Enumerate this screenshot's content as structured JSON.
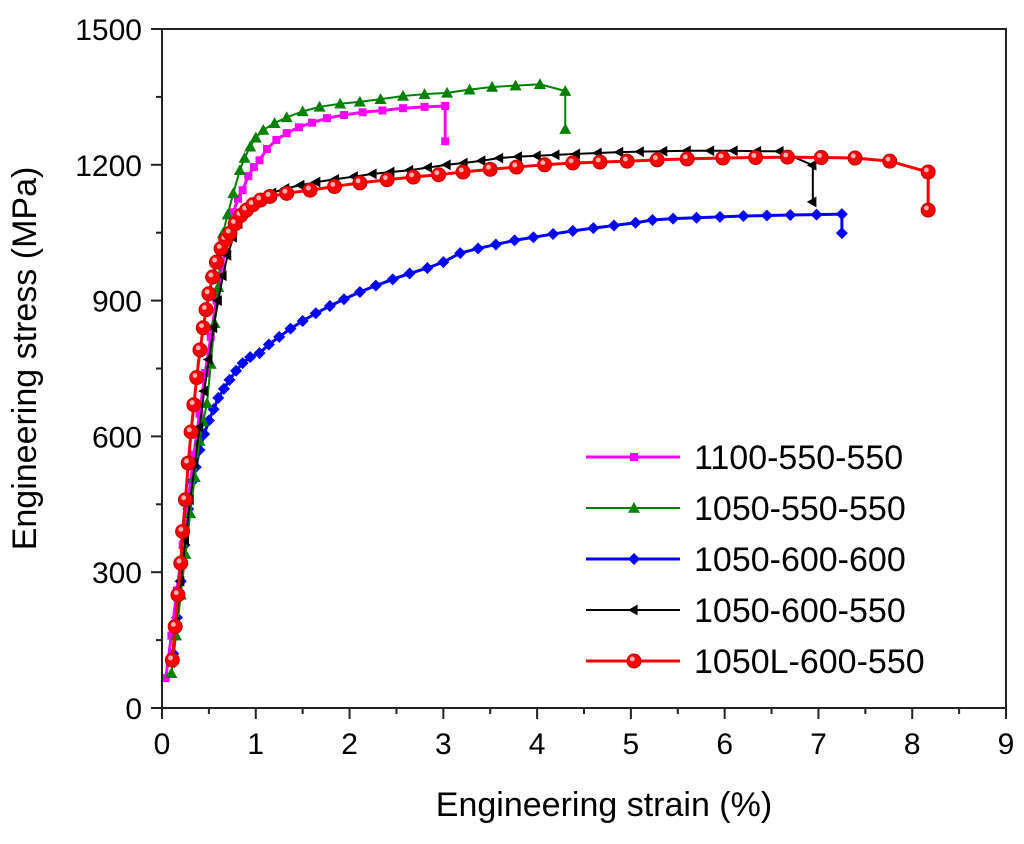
{
  "chart_data": {
    "type": "line",
    "title": "",
    "xlabel": "Engineering strain (%)",
    "ylabel": "Engineering stress (MPa)",
    "xlim": [
      0,
      9
    ],
    "ylim": [
      0,
      1500
    ],
    "xticks": [
      0,
      1,
      2,
      3,
      4,
      5,
      6,
      7,
      8,
      9
    ],
    "yticks": [
      0,
      300,
      600,
      900,
      1200,
      1500
    ],
    "xtick_labels": [
      "0",
      "1",
      "2",
      "3",
      "4",
      "5",
      "6",
      "7",
      "8",
      "9"
    ],
    "ytick_labels": [
      "0",
      "300",
      "600",
      "900",
      "1200",
      "1500"
    ],
    "grid": false,
    "legend_position": "bottom-right",
    "series": [
      {
        "name": "1100-550-550",
        "color": "#ff00ff",
        "marker": "square",
        "x": [
          0.04,
          0.1,
          0.16,
          0.22,
          0.28,
          0.34,
          0.4,
          0.46,
          0.52,
          0.58,
          0.64,
          0.7,
          0.76,
          0.81,
          0.86,
          0.92,
          0.98,
          1.04,
          1.12,
          1.22,
          1.33,
          1.46,
          1.6,
          1.76,
          1.94,
          2.14,
          2.35,
          2.57,
          2.8,
          3.02,
          3.02
        ],
        "y": [
          66,
          160,
          260,
          360,
          460,
          560,
          650,
          740,
          820,
          900,
          975,
          1040,
          1095,
          1125,
          1144,
          1175,
          1195,
          1210,
          1235,
          1255,
          1270,
          1283,
          1293,
          1303,
          1310,
          1316,
          1320,
          1325,
          1328,
          1330,
          1252
        ]
      },
      {
        "name": "1050-550-550",
        "color": "#008000",
        "marker": "triangle-up",
        "x": [
          0.1,
          0.15,
          0.2,
          0.25,
          0.3,
          0.35,
          0.4,
          0.44,
          0.48,
          0.52,
          0.56,
          0.6,
          0.65,
          0.7,
          0.76,
          0.83,
          0.88,
          0.94,
          1.0,
          1.08,
          1.2,
          1.33,
          1.5,
          1.68,
          1.9,
          2.11,
          2.33,
          2.57,
          2.8,
          3.04,
          3.28,
          3.52,
          3.77,
          4.03,
          4.3,
          4.3
        ],
        "y": [
          77,
          160,
          250,
          340,
          430,
          510,
          590,
          633,
          673,
          760,
          850,
          930,
          1049,
          1090,
          1137,
          1188,
          1215,
          1240,
          1260,
          1277,
          1292,
          1305,
          1318,
          1328,
          1335,
          1339,
          1345,
          1352,
          1356,
          1359,
          1366,
          1372,
          1375,
          1378,
          1363,
          1279
        ]
      },
      {
        "name": "1050-600-600",
        "color": "#0000ff",
        "marker": "diamond",
        "x": [
          0.12,
          0.16,
          0.2,
          0.24,
          0.28,
          0.32,
          0.36,
          0.4,
          0.45,
          0.5,
          0.55,
          0.6,
          0.66,
          0.72,
          0.79,
          0.86,
          0.94,
          1.04,
          1.14,
          1.25,
          1.37,
          1.5,
          1.64,
          1.79,
          1.94,
          2.11,
          2.28,
          2.46,
          2.64,
          2.83,
          3.0,
          3.18,
          3.37,
          3.56,
          3.76,
          3.96,
          4.17,
          4.38,
          4.6,
          4.82,
          5.05,
          5.23,
          5.45,
          5.7,
          5.95,
          6.2,
          6.45,
          6.7,
          6.98,
          7.25,
          7.25
        ],
        "y": [
          120,
          200,
          280,
          360,
          440,
          500,
          532,
          570,
          605,
          635,
          660,
          685,
          705,
          725,
          745,
          762,
          775,
          784,
          803,
          820,
          838,
          855,
          872,
          888,
          903,
          919,
          933,
          947,
          960,
          972,
          985,
          1005,
          1015,
          1024,
          1033,
          1040,
          1047,
          1054,
          1060,
          1066,
          1072,
          1078,
          1081,
          1083,
          1085,
          1087,
          1088,
          1089,
          1090,
          1091,
          1049
        ]
      },
      {
        "name": "1050-600-550",
        "color": "#000000",
        "marker": "triangle-left",
        "x": [
          0.1,
          0.15,
          0.2,
          0.25,
          0.3,
          0.35,
          0.4,
          0.45,
          0.5,
          0.55,
          0.6,
          0.65,
          0.7,
          0.76,
          0.82,
          0.89,
          0.97,
          1.06,
          1.18,
          1.32,
          1.48,
          1.65,
          1.85,
          2.05,
          2.25,
          2.44,
          2.64,
          2.84,
          3.04,
          3.22,
          3.41,
          3.6,
          3.8,
          4.0,
          4.2,
          4.42,
          4.65,
          4.88,
          5.1,
          5.35,
          5.6,
          5.85,
          6.1,
          6.35,
          6.59,
          6.94,
          6.94
        ],
        "y": [
          100,
          190,
          280,
          370,
          460,
          540,
          620,
          700,
          770,
          840,
          900,
          955,
          1000,
          1040,
          1070,
          1095,
          1110,
          1125,
          1138,
          1148,
          1155,
          1162,
          1168,
          1174,
          1180,
          1184,
          1188,
          1194,
          1200,
          1204,
          1209,
          1215,
          1218,
          1220,
          1222,
          1224,
          1226,
          1228,
          1229,
          1230,
          1231,
          1231,
          1231,
          1230,
          1230,
          1199,
          1118
        ]
      },
      {
        "name": "1050L-600-550",
        "color": "#ff0000",
        "marker": "circle",
        "x": [
          0.11,
          0.14,
          0.17,
          0.2,
          0.22,
          0.25,
          0.28,
          0.31,
          0.34,
          0.37,
          0.405,
          0.44,
          0.47,
          0.5,
          0.54,
          0.58,
          0.63,
          0.68,
          0.725,
          0.78,
          0.84,
          0.9,
          0.97,
          1.05,
          1.15,
          1.33,
          1.58,
          1.84,
          2.11,
          2.4,
          2.68,
          2.95,
          3.21,
          3.5,
          3.78,
          4.08,
          4.38,
          4.67,
          4.96,
          5.28,
          5.6,
          5.98,
          6.33,
          6.67,
          7.03,
          7.39,
          7.76,
          8.17,
          8.17
        ],
        "y": [
          106,
          180,
          250,
          320,
          390,
          460,
          541,
          610,
          670,
          730,
          791,
          840,
          880,
          915,
          952,
          985,
          1015,
          1035,
          1049,
          1070,
          1088,
          1100,
          1112,
          1122,
          1130,
          1137,
          1144,
          1152,
          1160,
          1167,
          1173,
          1178,
          1184,
          1190,
          1195,
          1200,
          1204,
          1206,
          1208,
          1211,
          1213,
          1215,
          1216,
          1217,
          1216,
          1215,
          1208,
          1184,
          1100
        ]
      }
    ]
  }
}
